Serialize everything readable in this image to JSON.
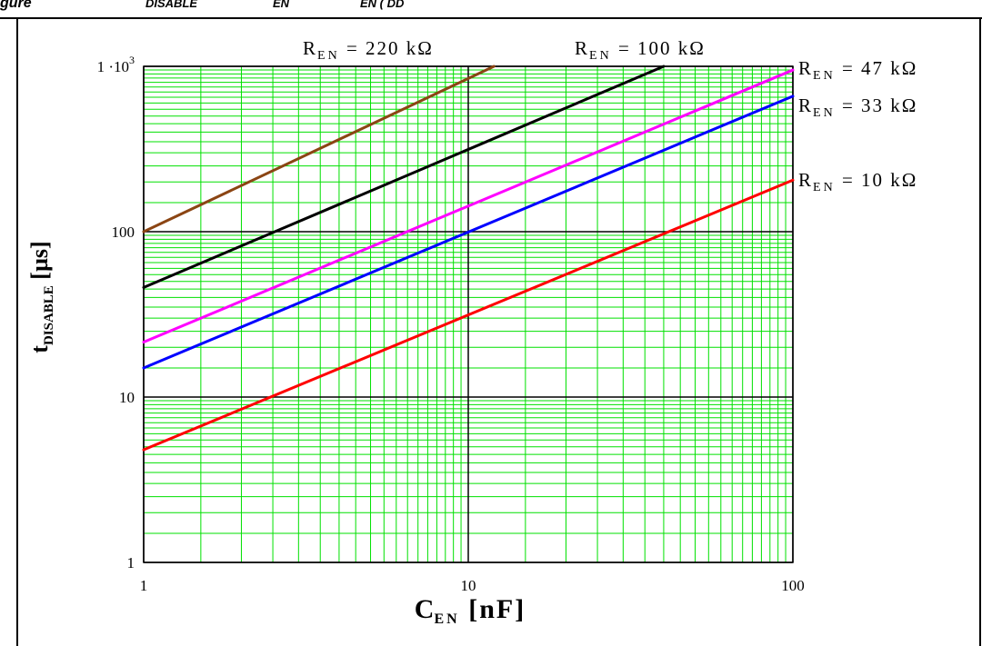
{
  "caption": {
    "start": "gure",
    "parts": [
      {
        "text": "DISABLE"
      },
      {
        "text": "EN"
      },
      {
        "text": "EN ( DD"
      }
    ]
  },
  "chart_data": {
    "type": "line",
    "x_scale": "log",
    "y_scale": "log",
    "xlim": [
      1,
      100
    ],
    "ylim": [
      1,
      1000
    ],
    "grid": true,
    "x_ticks": [
      {
        "value": 1,
        "label": "1"
      },
      {
        "value": 10,
        "label": "10"
      },
      {
        "value": 100,
        "label": "100"
      }
    ],
    "y_ticks": [
      {
        "value": 1,
        "label": "1"
      },
      {
        "value": 10,
        "label": "10"
      },
      {
        "value": 100,
        "label": "100"
      },
      {
        "value": 1000,
        "label": "1 ·10",
        "sup": "3"
      }
    ],
    "xlabel": {
      "main": "C",
      "sub": "EN",
      "unit": " [nF]"
    },
    "ylabel": {
      "main": "t",
      "sub": "DISABLE",
      "unit": " [µs]"
    },
    "series": [
      {
        "name": "R",
        "sub": "EN",
        "value": " = 220 kΩ",
        "color": "#8b4513",
        "x": [
          1,
          12
        ],
        "y": [
          100,
          1000
        ]
      },
      {
        "name": "R",
        "sub": "EN",
        "value": " = 100 kΩ",
        "color": "#000000",
        "x": [
          1,
          40
        ],
        "y": [
          46,
          1000
        ]
      },
      {
        "name": "R",
        "sub": "EN",
        "value": " = 47 kΩ",
        "color": "#ff00ff",
        "x": [
          1,
          100
        ],
        "y": [
          21.5,
          950
        ]
      },
      {
        "name": "R",
        "sub": "EN",
        "value": " = 33 kΩ",
        "color": "#0000ff",
        "x": [
          1,
          100
        ],
        "y": [
          15,
          660
        ]
      },
      {
        "name": "R",
        "sub": "EN",
        "value": " = 10 kΩ",
        "color": "#ff0000",
        "x": [
          1,
          100
        ],
        "y": [
          4.8,
          205
        ]
      }
    ]
  }
}
